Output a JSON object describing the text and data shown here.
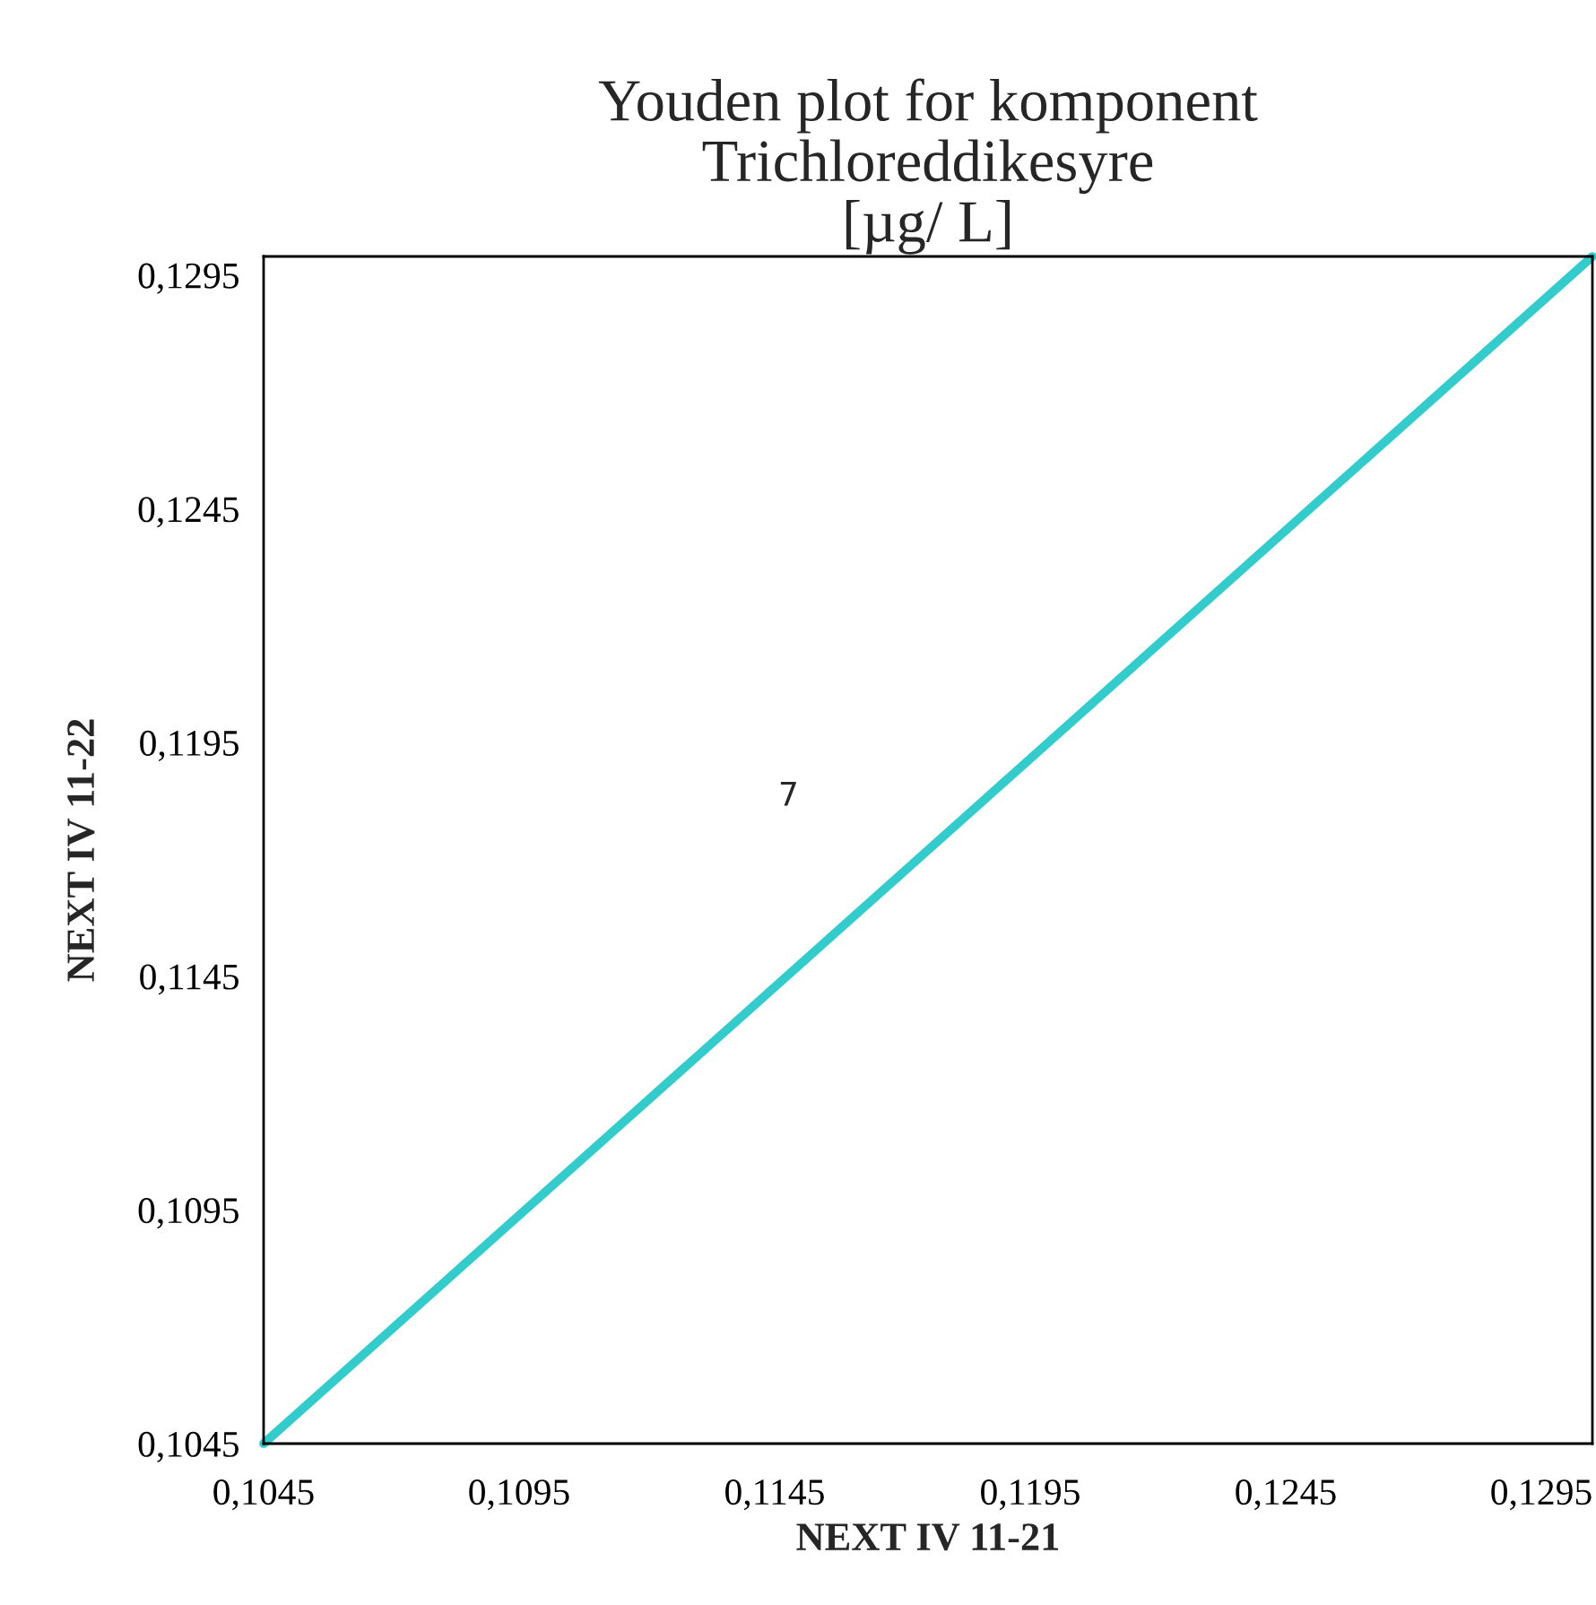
{
  "chart_data": {
    "type": "line",
    "title": "Youden plot for komponent\nTrichloreddikesyre\n[µg/ L]",
    "xlabel": "NEXT IV 11-21",
    "ylabel": "NEXT IV 11-22",
    "x": [
      0.1045,
      0.1305
    ],
    "series": [
      {
        "color": "#33cccc",
        "values": [
          0.1045,
          0.1299
        ]
      }
    ],
    "annotations": [
      "7"
    ],
    "xlim": [
      0.1045,
      0.1305
    ],
    "ylim": [
      0.1045,
      0.1299
    ],
    "xticks": [
      {
        "value": 0.1045,
        "label": "0,1045"
      },
      {
        "value": 0.1095,
        "label": "0,1095"
      },
      {
        "value": 0.1145,
        "label": "0,1145"
      },
      {
        "value": 0.1195,
        "label": "0,1195"
      },
      {
        "value": 0.1245,
        "label": "0,1245"
      },
      {
        "value": 0.1295,
        "label": "0,1295"
      }
    ],
    "yticks": [
      {
        "value": 0.1045,
        "label": "0,1045"
      },
      {
        "value": 0.1095,
        "label": "0,1095"
      },
      {
        "value": 0.1145,
        "label": "0,1145"
      },
      {
        "value": 0.1195,
        "label": "0,1195"
      },
      {
        "value": 0.1245,
        "label": "0,1245"
      },
      {
        "value": 0.1295,
        "label": "0,1295"
      }
    ],
    "grid": false,
    "marker": "none",
    "line_style": "solid"
  }
}
